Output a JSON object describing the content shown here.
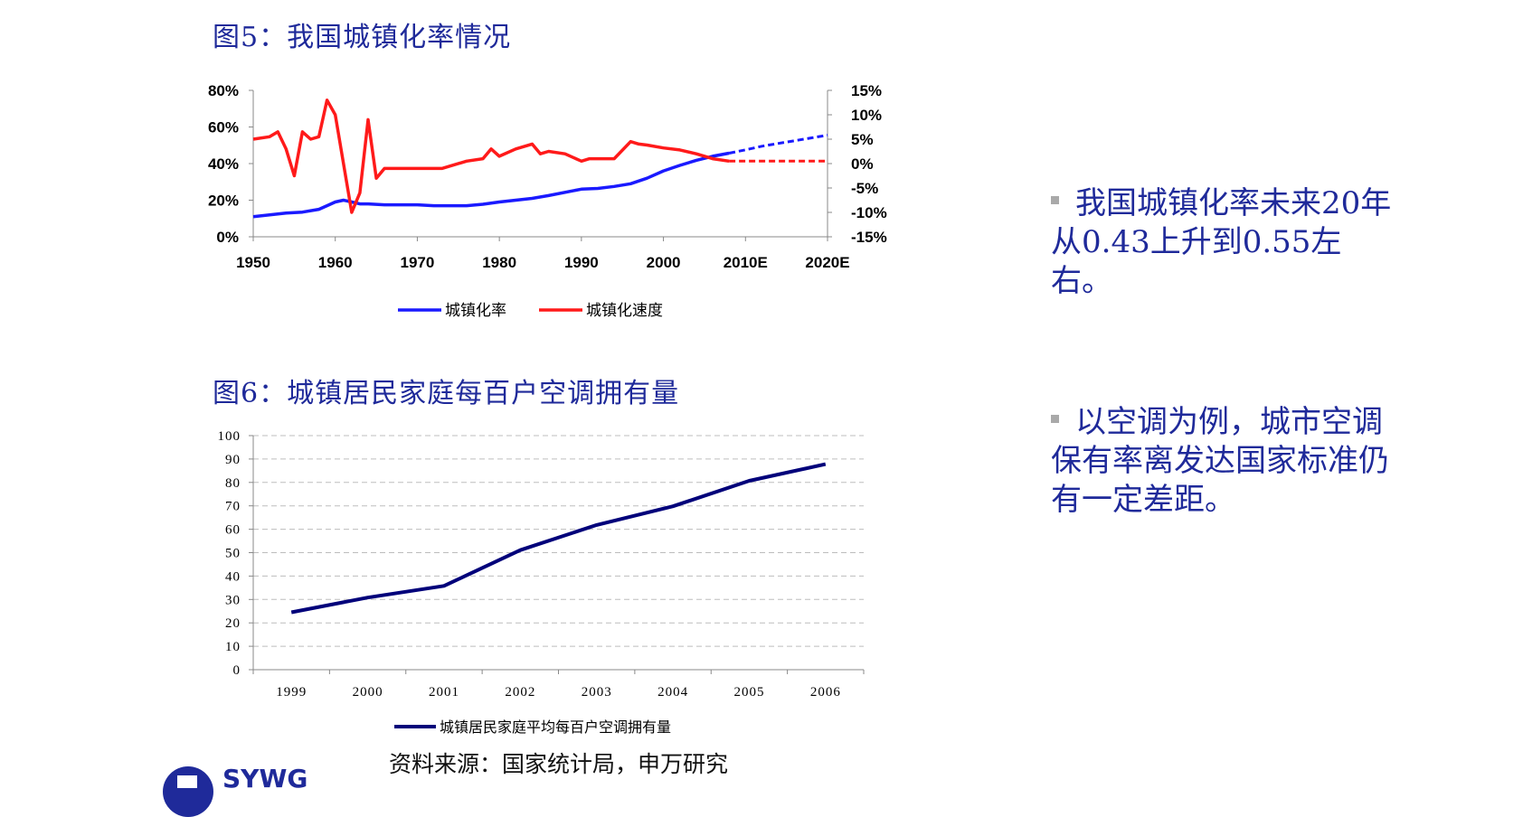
{
  "titles": {
    "fig5": "图5：我国城镇化率情况",
    "fig6": "图6：城镇居民家庭每百户空调拥有量"
  },
  "bullets": [
    "我国城镇化率未来20年从0.43上升到0.55左右。",
    "以空调为例，城市空调保有率离发达国家标准仍有一定差距。"
  ],
  "source": "资料来源：国家统计局，申万研究",
  "logo_text": "SYWG",
  "colors": {
    "blue": "#1a1aff",
    "red": "#ff1a1a",
    "navy": "#00007a",
    "text_blue": "#1f2a9a"
  },
  "chart_data": [
    {
      "type": "line",
      "x_tick_labels": [
        "1950",
        "1960",
        "1970",
        "1980",
        "1990",
        "2000",
        "2010E",
        "2020E"
      ],
      "y_left": {
        "ticks": [
          "0%",
          "20%",
          "40%",
          "60%",
          "80%"
        ],
        "range": [
          0,
          80
        ]
      },
      "y_right": {
        "ticks": [
          "-15%",
          "-10%",
          "-5%",
          "0%",
          "5%",
          "10%",
          "15%"
        ],
        "range": [
          -15,
          15
        ]
      },
      "legend": {
        "placement": "bottom"
      },
      "series": [
        {
          "name": "城镇化率",
          "axis": "left",
          "color": "#1a1aff",
          "x": [
            1950,
            1952,
            1954,
            1956,
            1958,
            1959,
            1960,
            1961,
            1962,
            1963,
            1964,
            1966,
            1970,
            1972,
            1976,
            1978,
            1980,
            1982,
            1984,
            1986,
            1990,
            1992,
            1994,
            1996,
            1998,
            2000,
            2002,
            2004,
            2006,
            2008
          ],
          "y": [
            11,
            12,
            13,
            13.5,
            15,
            17,
            19,
            20,
            19,
            18,
            18,
            17.5,
            17.5,
            17,
            17,
            17.8,
            19,
            20,
            21,
            22.5,
            26,
            26.4,
            27.5,
            29,
            32,
            36,
            39,
            41.8,
            44,
            45.7
          ],
          "projected": {
            "x": [
              2008,
              2010,
              2012,
              2014,
              2016,
              2018,
              2020
            ],
            "y": [
              45.7,
              47.5,
              49.5,
              51,
              52.5,
              54,
              55.5
            ]
          }
        },
        {
          "name": "城镇化速度",
          "axis": "right",
          "color": "#ff1a1a",
          "x": [
            1950,
            1952,
            1953,
            1954,
            1955,
            1956,
            1957,
            1958,
            1959,
            1960,
            1961,
            1962,
            1963,
            1964,
            1965,
            1966,
            1970,
            1973,
            1976,
            1978,
            1979,
            1980,
            1982,
            1984,
            1985,
            1986,
            1988,
            1990,
            1991,
            1992,
            1994,
            1996,
            1997,
            1998,
            2000,
            2002,
            2004,
            2006,
            2008
          ],
          "y": [
            5,
            5.5,
            6.5,
            3,
            -2.5,
            6.5,
            5,
            5.5,
            13,
            10,
            0,
            -10,
            -6,
            9,
            -3,
            -1,
            -1,
            -1,
            0.5,
            1,
            3,
            1.5,
            3,
            4,
            2,
            2.5,
            2,
            0.5,
            1,
            1,
            1,
            4.5,
            4,
            3.8,
            3.2,
            2.8,
            2,
            1,
            0.5
          ],
          "projected": {
            "x": [
              2008,
              2010,
              2012,
              2015,
              2020
            ],
            "y": [
              0.5,
              0.5,
              0.5,
              0.5,
              0.5
            ]
          }
        }
      ]
    },
    {
      "type": "line",
      "categories": [
        "1999",
        "2000",
        "2001",
        "2002",
        "2003",
        "2004",
        "2005",
        "2006"
      ],
      "y_ticks": [
        "0",
        "10",
        "20",
        "30",
        "40",
        "50",
        "60",
        "70",
        "80",
        "90",
        "100"
      ],
      "ylim": [
        0,
        100
      ],
      "grid": true,
      "legend": {
        "placement": "bottom"
      },
      "series": [
        {
          "name": "城镇居民家庭平均每百户空调拥有量",
          "color": "#00007a",
          "values": [
            24.5,
            30.8,
            35.8,
            51.1,
            61.8,
            69.8,
            80.7,
            87.8
          ]
        }
      ]
    }
  ]
}
